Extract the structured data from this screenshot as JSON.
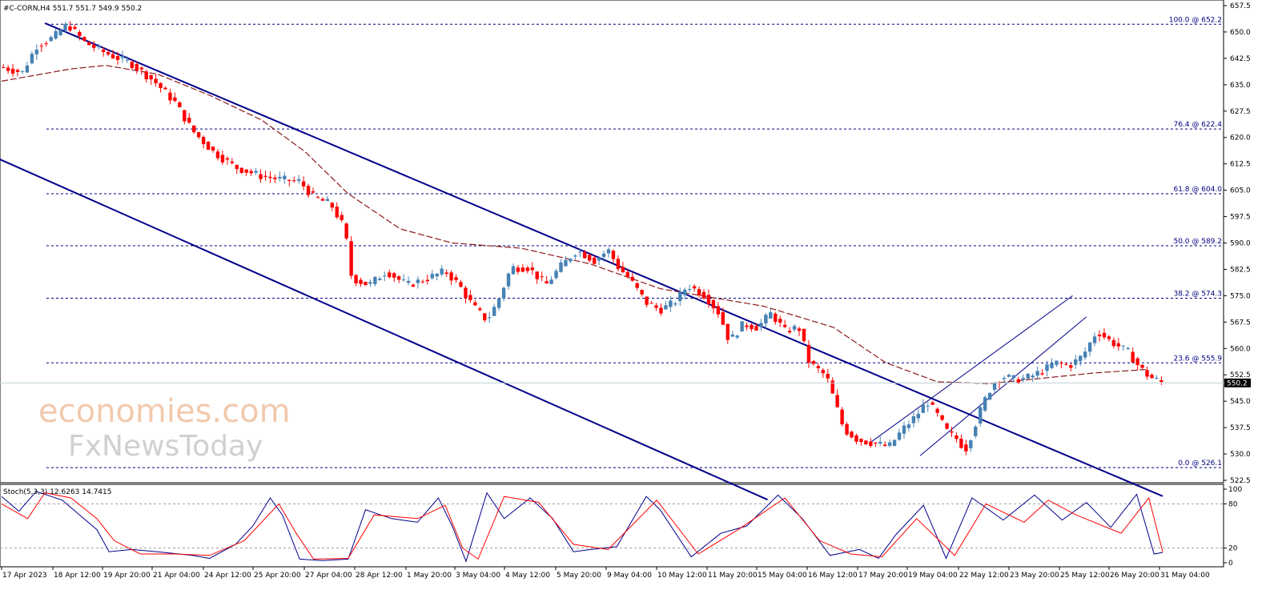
{
  "header": {
    "symbol_label": "#C-CORN,H4  551.7 551.7 549.9 550.2"
  },
  "watermark": {
    "line1": "economies.com",
    "line2": "FxNewsToday"
  },
  "colors": {
    "bull": "#4682b4",
    "bear": "#ff0000",
    "channel": "#00008b",
    "ma": "#8b1a1a",
    "fib": "#000080",
    "stoch_main": "#00008b",
    "stoch_signal": "#ff0000",
    "price_tag_bg": "#000000"
  },
  "chart_data": [
    {
      "type": "candlestick",
      "title": "#C-CORN,H4",
      "ylim": [
        522.5,
        657.5
      ],
      "y_ticks": [
        "657.5",
        "650.0",
        "642.5",
        "635.0",
        "627.5",
        "620.0",
        "612.5",
        "605.0",
        "597.5",
        "590.0",
        "582.5",
        "575.0",
        "567.5",
        "560.0",
        "552.5",
        "545.0",
        "537.5",
        "530.0",
        "522.5"
      ],
      "x_labels": [
        "17 Apr 2023",
        "18 Apr 12:00",
        "19 Apr 20:00",
        "21 Apr 04:00",
        "24 Apr 12:00",
        "25 Apr 20:00",
        "27 Apr 04:00",
        "28 Apr 12:00",
        "1 May 20:00",
        "3 May 04:00",
        "4 May 12:00",
        "5 May 20:00",
        "9 May 04:00",
        "10 May 12:00",
        "11 May 20:00",
        "15 May 04:00",
        "16 May 12:00",
        "17 May 20:00",
        "19 May 04:00",
        "22 May 12:00",
        "23 May 20:00",
        "25 May 12:00",
        "26 May 20:00",
        "31 May 04:00"
      ],
      "last_price": "550.2",
      "last_price_value": 550.2,
      "close_path": [
        [
          0,
          640
        ],
        [
          12,
          638.5
        ],
        [
          20,
          646
        ],
        [
          30,
          648.5
        ],
        [
          38,
          652.2
        ],
        [
          48,
          647
        ],
        [
          60,
          644
        ],
        [
          75,
          641
        ],
        [
          88,
          636
        ],
        [
          100,
          630
        ],
        [
          110,
          622
        ],
        [
          122,
          616
        ],
        [
          135,
          611.5
        ],
        [
          150,
          609
        ],
        [
          162,
          608
        ],
        [
          172,
          607.5
        ],
        [
          180,
          603
        ],
        [
          190,
          601
        ],
        [
          198,
          594
        ],
        [
          202,
          580
        ],
        [
          212,
          578
        ],
        [
          222,
          582
        ],
        [
          234,
          578
        ],
        [
          246,
          580
        ],
        [
          256,
          582
        ],
        [
          264,
          578
        ],
        [
          272,
          572
        ],
        [
          280,
          568
        ],
        [
          286,
          573
        ],
        [
          294,
          583
        ],
        [
          304,
          583
        ],
        [
          314,
          578
        ],
        [
          322,
          583
        ],
        [
          332,
          588
        ],
        [
          342,
          585
        ],
        [
          350,
          588
        ],
        [
          356,
          583
        ],
        [
          362,
          580
        ],
        [
          372,
          573
        ],
        [
          380,
          571
        ],
        [
          388,
          573
        ],
        [
          396,
          578
        ],
        [
          406,
          575
        ],
        [
          414,
          570
        ],
        [
          420,
          562
        ],
        [
          428,
          567
        ],
        [
          436,
          566
        ],
        [
          444,
          570
        ],
        [
          452,
          565
        ],
        [
          460,
          566
        ],
        [
          466,
          556
        ],
        [
          476,
          552
        ],
        [
          486,
          537
        ],
        [
          494,
          534
        ],
        [
          504,
          533
        ],
        [
          512,
          532
        ],
        [
          520,
          537
        ],
        [
          528,
          541
        ],
        [
          534,
          545
        ],
        [
          540,
          541
        ],
        [
          546,
          536
        ],
        [
          552,
          534
        ],
        [
          556,
          531
        ],
        [
          560,
          536
        ],
        [
          566,
          544
        ],
        [
          572,
          550
        ],
        [
          578,
          552
        ],
        [
          586,
          551
        ],
        [
          594,
          552
        ],
        [
          602,
          554
        ],
        [
          608,
          556
        ],
        [
          616,
          555
        ],
        [
          624,
          558
        ],
        [
          632,
          565
        ],
        [
          640,
          562
        ],
        [
          650,
          559
        ],
        [
          656,
          555
        ],
        [
          662,
          552
        ],
        [
          670,
          550.2
        ]
      ],
      "ma_path": [
        [
          0,
          636
        ],
        [
          40,
          639.5
        ],
        [
          60,
          640.5
        ],
        [
          90,
          638
        ],
        [
          120,
          632
        ],
        [
          150,
          625
        ],
        [
          175,
          616
        ],
        [
          200,
          604
        ],
        [
          230,
          594
        ],
        [
          260,
          590
        ],
        [
          300,
          588.5
        ],
        [
          340,
          584
        ],
        [
          380,
          577
        ],
        [
          410,
          574.5
        ],
        [
          440,
          572
        ],
        [
          480,
          566
        ],
        [
          510,
          556
        ],
        [
          540,
          550.5
        ],
        [
          570,
          550
        ],
        [
          600,
          551.5
        ],
        [
          630,
          553
        ],
        [
          660,
          554
        ]
      ],
      "fib_levels": [
        {
          "label": "100.0 @ 652.2",
          "value": 652.2
        },
        {
          "label": "76.4 @ 622.4",
          "value": 622.4
        },
        {
          "label": "61.8 @ 604.0",
          "value": 604.0
        },
        {
          "label": "50.0 @ 589.2",
          "value": 589.2
        },
        {
          "label": "38.2 @ 574.3",
          "value": 574.3
        },
        {
          "label": "23.6 @ 555.9",
          "value": 555.9
        },
        {
          "label": "0.0 @ 526.1",
          "value": 526.1
        }
      ],
      "trendlines": [
        {
          "name": "channel-upper",
          "from": [
            25,
            652.5
          ],
          "to": [
            670,
            518
          ]
        },
        {
          "name": "channel-lower",
          "from": [
            -2,
            614
          ],
          "to": [
            442,
            517
          ]
        },
        {
          "name": "up-channel-lower",
          "from": [
            530,
            529.5
          ],
          "to": [
            626,
            569
          ]
        },
        {
          "name": "up-channel-upper",
          "from": [
            502,
            533.5
          ],
          "to": [
            618,
            575
          ]
        }
      ]
    },
    {
      "type": "line",
      "title": "Stoch(5,3,3) 12.6263 14.7415",
      "ylim": [
        0,
        100
      ],
      "y_ticks": [
        "100",
        "80",
        "20",
        "0"
      ],
      "levels": [
        20,
        80
      ],
      "series": [
        {
          "name": "main",
          "values": [
            [
              0,
              90
            ],
            [
              10,
              70
            ],
            [
              20,
              97
            ],
            [
              35,
              85
            ],
            [
              45,
              65
            ],
            [
              55,
              45
            ],
            [
              62,
              15
            ],
            [
              75,
              18
            ],
            [
              90,
              15
            ],
            [
              110,
              10
            ],
            [
              120,
              6
            ],
            [
              135,
              25
            ],
            [
              145,
              50
            ],
            [
              155,
              88
            ],
            [
              162,
              65
            ],
            [
              172,
              5
            ],
            [
              185,
              3
            ],
            [
              200,
              5
            ],
            [
              210,
              72
            ],
            [
              225,
              60
            ],
            [
              240,
              55
            ],
            [
              252,
              88
            ],
            [
              260,
              50
            ],
            [
              268,
              2
            ],
            [
              280,
              95
            ],
            [
              290,
              60
            ],
            [
              305,
              88
            ],
            [
              318,
              60
            ],
            [
              330,
              15
            ],
            [
              340,
              18
            ],
            [
              355,
              22
            ],
            [
              372,
              90
            ],
            [
              380,
              72
            ],
            [
              398,
              8
            ],
            [
              415,
              40
            ],
            [
              430,
              50
            ],
            [
              448,
              92
            ],
            [
              462,
              60
            ],
            [
              478,
              10
            ],
            [
              495,
              18
            ],
            [
              506,
              6
            ],
            [
              516,
              38
            ],
            [
              532,
              78
            ],
            [
              545,
              6
            ],
            [
              560,
              88
            ],
            [
              578,
              58
            ],
            [
              596,
              92
            ],
            [
              612,
              58
            ],
            [
              626,
              82
            ],
            [
              640,
              48
            ],
            [
              655,
              93
            ],
            [
              665,
              12
            ],
            [
              670,
              14
            ]
          ]
        },
        {
          "name": "signal",
          "values": [
            [
              0,
              80
            ],
            [
              15,
              60
            ],
            [
              25,
              95
            ],
            [
              40,
              88
            ],
            [
              55,
              60
            ],
            [
              65,
              30
            ],
            [
              80,
              12
            ],
            [
              100,
              12
            ],
            [
              120,
              10
            ],
            [
              140,
              30
            ],
            [
              160,
              80
            ],
            [
              170,
              40
            ],
            [
              180,
              5
            ],
            [
              200,
              6
            ],
            [
              215,
              65
            ],
            [
              240,
              60
            ],
            [
              256,
              78
            ],
            [
              266,
              20
            ],
            [
              275,
              5
            ],
            [
              290,
              90
            ],
            [
              310,
              82
            ],
            [
              330,
              25
            ],
            [
              350,
              18
            ],
            [
              378,
              85
            ],
            [
              402,
              12
            ],
            [
              425,
              45
            ],
            [
              452,
              88
            ],
            [
              472,
              30
            ],
            [
              490,
              12
            ],
            [
              508,
              8
            ],
            [
              528,
              60
            ],
            [
              550,
              10
            ],
            [
              568,
              80
            ],
            [
              590,
              55
            ],
            [
              604,
              85
            ],
            [
              620,
              65
            ],
            [
              646,
              40
            ],
            [
              662,
              88
            ],
            [
              670,
              15
            ]
          ]
        }
      ]
    }
  ]
}
